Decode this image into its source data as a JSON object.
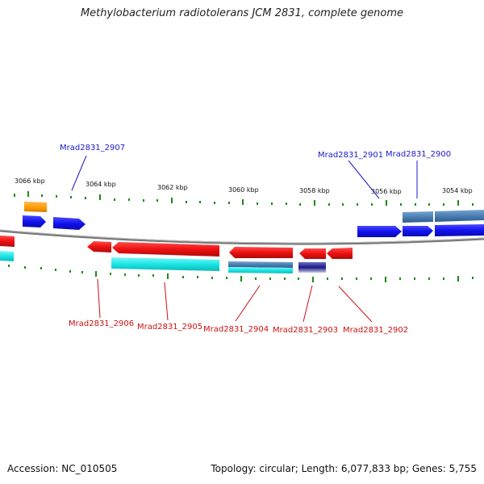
{
  "title": "Methylobacterium radiotolerans JCM 2831, complete genome",
  "footer": {
    "accession": "Accession: NC_010505",
    "summary": "Topology: circular; Length: 6,077,833 bp; Genes: 5,755"
  },
  "kbp_labels": [
    "3066 kbp",
    "3064 kbp",
    "3062 kbp",
    "3060 kbp",
    "3058 kbp",
    "3056 kbp",
    "3054 kbp"
  ],
  "upper_gene_labels": [
    "Mrad2831_2907",
    "Mrad2831_2901",
    "Mrad2831_2900"
  ],
  "lower_gene_labels": [
    "Mrad2831_2906",
    "Mrad2831_2905",
    "Mrad2831_2904",
    "Mrad2831_2903",
    "Mrad2831_2902"
  ],
  "colors": {
    "upper_label": "#1a1acc",
    "lower_label": "#cc1111",
    "forward_gene": "#1a1aff",
    "reverse_gene": "#ee1111",
    "cds_feature": "#19e6e6",
    "steelblue_feature": "#4a7fb5",
    "orange_feature": "#ff9900",
    "tick": "#1a8a1a",
    "backbone": "#777777"
  }
}
